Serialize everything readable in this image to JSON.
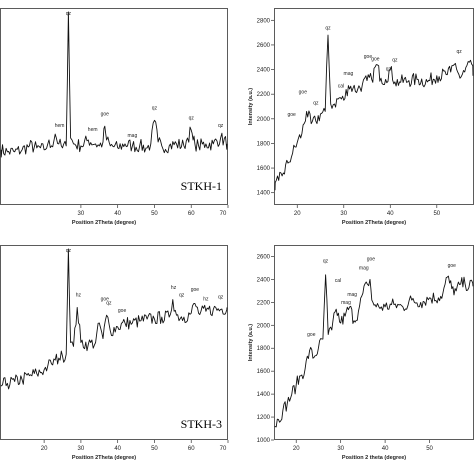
{
  "chart_data": [
    {
      "id": "panel-1",
      "type": "line",
      "sample_label": "STKH-1",
      "xlabel": "Position 2Theta (degree)",
      "ylabel": "",
      "xlim": [
        8,
        70
      ],
      "ylim": [
        0,
        100
      ],
      "xticks": [
        30,
        40,
        50,
        60,
        70
      ],
      "yticks": [],
      "x": [
        8,
        10,
        12,
        14,
        16,
        18,
        20,
        21,
        22,
        23,
        24,
        25,
        26,
        26.6,
        27.2,
        28,
        30,
        32,
        34,
        35,
        36,
        36.5,
        37,
        38,
        40,
        42,
        44,
        46,
        48,
        49,
        50,
        51,
        52,
        54,
        56,
        58,
        59,
        60,
        60.5,
        61,
        62,
        64,
        66,
        68,
        70
      ],
      "series": [
        {
          "values": [
            28,
            27,
            27,
            28,
            30,
            29,
            28,
            31,
            30,
            36,
            31,
            29,
            30,
            98,
            34,
            31,
            30,
            33,
            31,
            30,
            32,
            40,
            33,
            30,
            29,
            31,
            30,
            30,
            29,
            31,
            43,
            32,
            30,
            30,
            31,
            30,
            34,
            38,
            33,
            31,
            30,
            31,
            31,
            34,
            31
          ]
        }
      ],
      "peaks": [
        {
          "label": "hem",
          "x": 33.2,
          "y": 36
        },
        {
          "label": "goe",
          "x": 36.5,
          "y": 44
        },
        {
          "label": "mag",
          "x": 44,
          "y": 33
        },
        {
          "label": "qz",
          "x": 50,
          "y": 47
        },
        {
          "label": "qz",
          "x": 60,
          "y": 42
        },
        {
          "label": "qz",
          "x": 68,
          "y": 38
        },
        {
          "label": "hem",
          "x": 24.2,
          "y": 38
        },
        {
          "label": "qz",
          "x": 26.6,
          "y": 99
        }
      ]
    },
    {
      "id": "panel-2",
      "type": "line",
      "sample_label": "",
      "xlabel": "Position 2Theta (degree)",
      "ylabel": "Intensity (a.u.)",
      "xlim": [
        15,
        58
      ],
      "ylim": [
        1300,
        2900
      ],
      "xticks": [
        20,
        30,
        40,
        50
      ],
      "yticks": [
        1400,
        1600,
        1800,
        2000,
        2200,
        2400,
        2600,
        2800
      ],
      "x": [
        15,
        16,
        17,
        18,
        19,
        20,
        21,
        22,
        23,
        24,
        25,
        26,
        26.6,
        27.2,
        28,
        29,
        30,
        31,
        32,
        33,
        34,
        35,
        36,
        37,
        38,
        39,
        40,
        41,
        42,
        44,
        46,
        48,
        50,
        52,
        53,
        54,
        55,
        56,
        57,
        58
      ],
      "series": [
        {
          "values": [
            1420,
            1500,
            1560,
            1640,
            1720,
            1810,
            1880,
            2060,
            1960,
            1980,
            2040,
            2060,
            2680,
            2120,
            2120,
            2170,
            2150,
            2270,
            2250,
            2240,
            2280,
            2310,
            2320,
            2440,
            2330,
            2320,
            2400,
            2300,
            2300,
            2310,
            2320,
            2300,
            2350,
            2360,
            2380,
            2450,
            2330,
            2380,
            2460,
            2350
          ]
        }
      ],
      "peaks": [
        {
          "label": "goe",
          "x": 18.8,
          "y": 2000
        },
        {
          "label": "goe",
          "x": 21.2,
          "y": 2180
        },
        {
          "label": "qz",
          "x": 24,
          "y": 2090
        },
        {
          "label": "qz",
          "x": 26.6,
          "y": 2700
        },
        {
          "label": "cal",
          "x": 29.4,
          "y": 2230
        },
        {
          "label": "mag",
          "x": 31,
          "y": 2330
        },
        {
          "label": "goe",
          "x": 35.2,
          "y": 2470
        },
        {
          "label": "goe",
          "x": 36.8,
          "y": 2450
        },
        {
          "label": "qz",
          "x": 39.6,
          "y": 2370
        },
        {
          "label": "qz",
          "x": 41,
          "y": 2440
        },
        {
          "label": "qz",
          "x": 54.8,
          "y": 2510
        }
      ]
    },
    {
      "id": "panel-3",
      "type": "line",
      "sample_label": "STKH-3",
      "xlabel": "Position 2Theta (degree)",
      "ylabel": "",
      "xlim": [
        8,
        70
      ],
      "ylim": [
        0,
        100
      ],
      "xticks": [
        20,
        30,
        40,
        50,
        60,
        70
      ],
      "yticks": [],
      "x": [
        8,
        10,
        12,
        14,
        16,
        18,
        20,
        21,
        22,
        23,
        24,
        25,
        26,
        26.6,
        27.2,
        28,
        29,
        30,
        32,
        34,
        35,
        36,
        37,
        38,
        40,
        42,
        44,
        46,
        48,
        50,
        52,
        54,
        55,
        56,
        58,
        60,
        61,
        62,
        64,
        66,
        68,
        70
      ],
      "series": [
        {
          "values": [
            28,
            29,
            30,
            31,
            33,
            34,
            36,
            38,
            39,
            41,
            42,
            43,
            44,
            98,
            50,
            48,
            68,
            50,
            49,
            50,
            60,
            52,
            64,
            56,
            58,
            60,
            60,
            61,
            62,
            62,
            63,
            63,
            72,
            64,
            63,
            65,
            70,
            65,
            66,
            67,
            67,
            68
          ]
        }
      ],
      "peaks": [
        {
          "label": "qz",
          "x": 26.6,
          "y": 99
        },
        {
          "label": "hz",
          "x": 29.3,
          "y": 72
        },
        {
          "label": "goe",
          "x": 36.5,
          "y": 70
        },
        {
          "label": "qz",
          "x": 37.6,
          "y": 68
        },
        {
          "label": "goe",
          "x": 41.2,
          "y": 64
        },
        {
          "label": "hz",
          "x": 55.2,
          "y": 76
        },
        {
          "label": "qz",
          "x": 57.4,
          "y": 72
        },
        {
          "label": "goe",
          "x": 61,
          "y": 75
        },
        {
          "label": "hz",
          "x": 64,
          "y": 70
        },
        {
          "label": "qz",
          "x": 68,
          "y": 71
        }
      ]
    },
    {
      "id": "panel-4",
      "type": "line",
      "sample_label": "",
      "xlabel": "Position 2 theta (degree)",
      "ylabel": "Intensity (a.u.)",
      "xlim": [
        15,
        60
      ],
      "ylim": [
        1000,
        2700
      ],
      "xticks": [
        20,
        30,
        40,
        50
      ],
      "yticks": [
        1000,
        1200,
        1400,
        1600,
        1800,
        2000,
        2200,
        2400,
        2600
      ],
      "x": [
        15,
        16,
        17,
        18,
        19,
        20,
        21,
        22,
        23,
        24,
        25,
        26,
        26.6,
        27.2,
        28,
        29,
        30,
        31,
        32,
        33,
        34,
        35,
        36,
        36.6,
        37,
        38,
        40,
        42,
        44,
        46,
        48,
        50,
        52,
        53,
        54,
        55,
        56,
        57,
        58,
        60
      ],
      "series": [
        {
          "values": [
            1120,
            1180,
            1260,
            1320,
            1400,
            1480,
            1560,
            1620,
            1780,
            1720,
            1800,
            1880,
            2440,
            1920,
            1960,
            2140,
            2020,
            2080,
            2160,
            2040,
            2120,
            2280,
            2360,
            2400,
            2220,
            2160,
            2160,
            2180,
            2160,
            2220,
            2200,
            2240,
            2240,
            2280,
            2420,
            2320,
            2300,
            2360,
            2360,
            2340
          ]
        }
      ],
      "peaks": [
        {
          "label": "goe",
          "x": 23.4,
          "y": 1880
        },
        {
          "label": "qz",
          "x": 26.6,
          "y": 2520
        },
        {
          "label": "cal",
          "x": 29.4,
          "y": 2350
        },
        {
          "label": "mag",
          "x": 31.2,
          "y": 2160
        },
        {
          "label": "mag",
          "x": 32.6,
          "y": 2230
        },
        {
          "label": "mag",
          "x": 35.2,
          "y": 2460
        },
        {
          "label": "goe",
          "x": 36.8,
          "y": 2540
        },
        {
          "label": "goe",
          "x": 55,
          "y": 2480
        }
      ]
    }
  ]
}
